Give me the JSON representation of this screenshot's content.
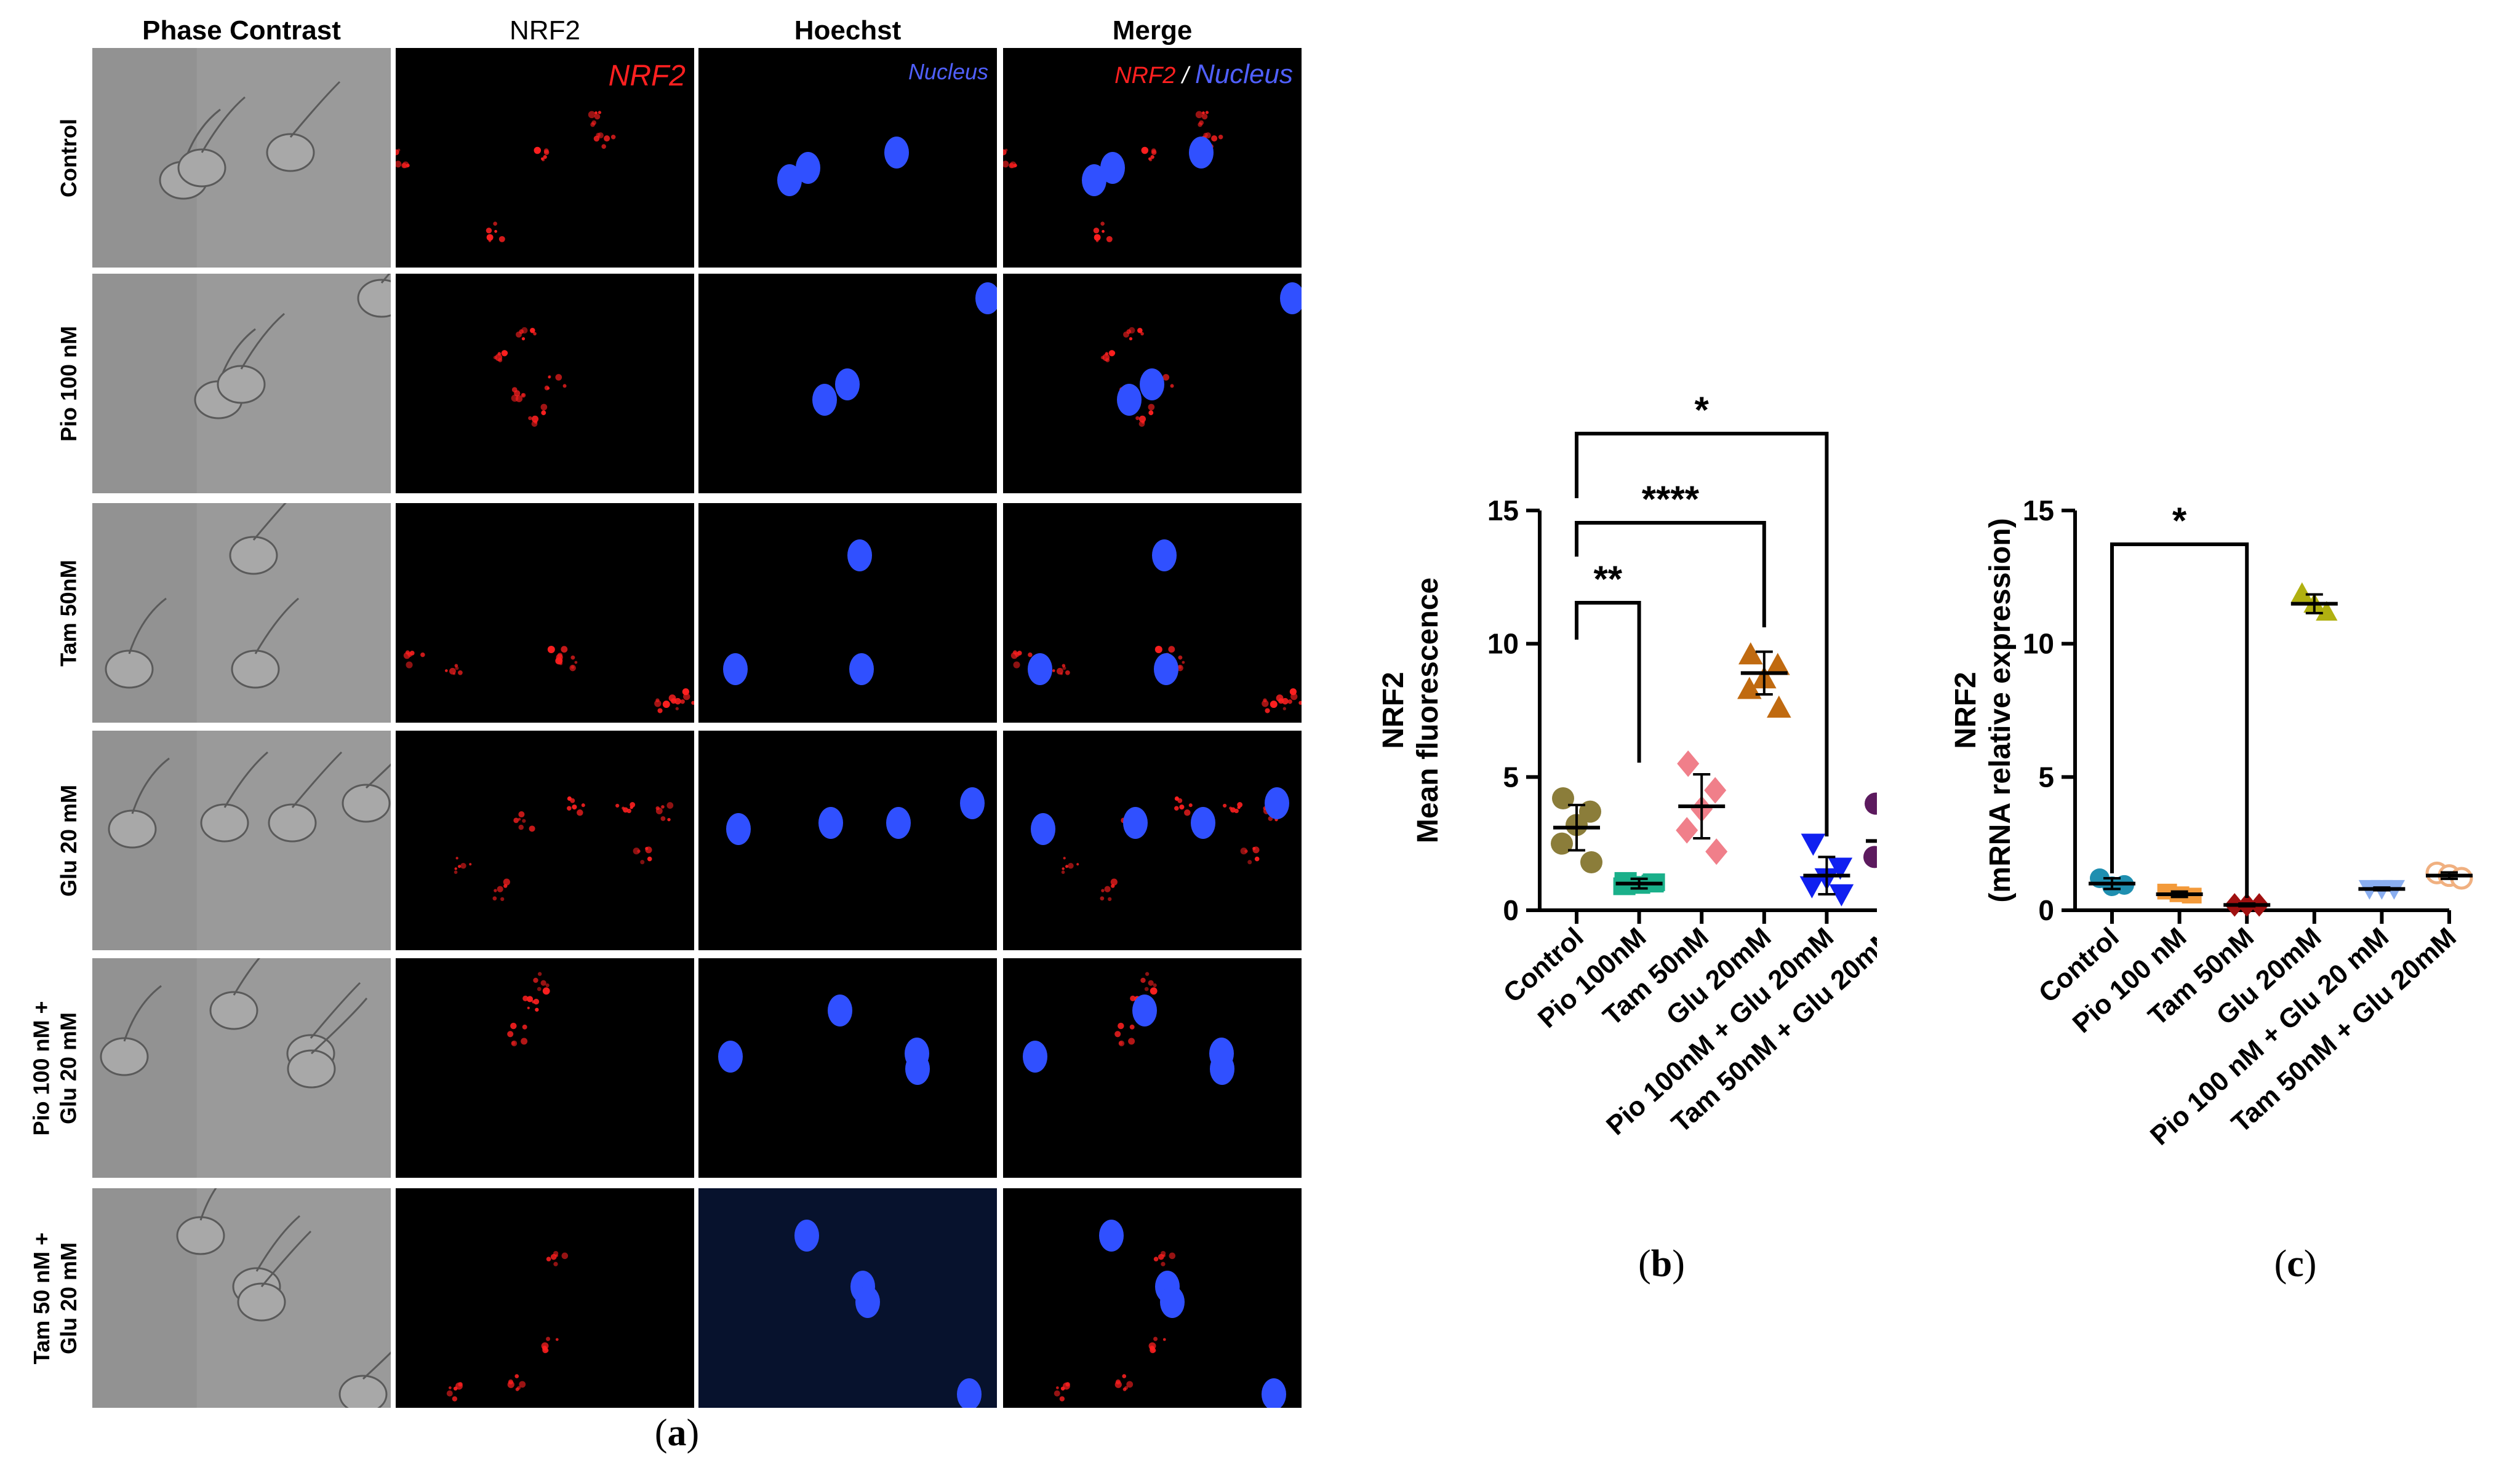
{
  "panel_a": {
    "column_headers": [
      "Phase Contrast",
      "NRF2",
      "Hoechst",
      "Merge"
    ],
    "row_labels": [
      [
        "Control"
      ],
      [
        "Pio 100 nM"
      ],
      [
        "Tam 50nM"
      ],
      [
        "Glu 20 mM"
      ],
      [
        "Pio 100 nM +",
        "Glu 20 mM"
      ],
      [
        "Tam 50 nM +",
        "Glu 20 mM"
      ]
    ],
    "nrf2_overlay": "NRF2",
    "hoechst_overlay": "Nucleus",
    "merge_overlay_a": "NRF2",
    "merge_overlay_sep": " / ",
    "merge_overlay_b": "Nucleus",
    "letter": "a",
    "colors": {
      "nrf2": "#ff2020",
      "nucleus": "#3050ff",
      "phase": "#9a9a9a"
    }
  },
  "panel_b": {
    "letter": "b"
  },
  "panel_c": {
    "letter": "c"
  },
  "chart_data": [
    {
      "type": "scatter",
      "panel": "b",
      "ylabel": "NRF2",
      "ylabel2": "Mean fluorescence",
      "xlabel": "",
      "ylim": [
        0,
        15
      ],
      "yticks": [
        0,
        5,
        10,
        15
      ],
      "categories": [
        "Control",
        "Pio 100nM",
        "Tam 50nM",
        "Glu 20mM",
        "Pio 100nM + Glu 20mM",
        "Tam 50nM + Glu 20mM"
      ],
      "colors": [
        "#8b7d3a",
        "#1ab08a",
        "#f07f8a",
        "#c06a10",
        "#1020f0",
        "#5c1a5e"
      ],
      "markers": [
        "circle",
        "square",
        "diamond",
        "triangle-up",
        "triangle-down",
        "circle"
      ],
      "means": [
        3.1,
        1.0,
        3.9,
        8.9,
        1.3,
        2.6
      ],
      "sds": [
        0.85,
        0.18,
        1.2,
        0.8,
        0.7,
        0.85
      ],
      "points": [
        [
          4.2,
          3.7,
          3.2,
          2.5,
          1.8
        ],
        [
          1.1,
          1.0,
          0.95,
          0.9,
          1.05
        ],
        [
          5.5,
          4.5,
          3.8,
          3.0,
          2.2
        ],
        [
          9.6,
          9.2,
          8.7,
          8.3,
          7.6
        ],
        [
          2.5,
          1.6,
          1.2,
          0.9,
          0.6
        ],
        [
          4.0,
          3.2,
          2.5,
          2.0,
          1.7
        ]
      ],
      "significance": [
        {
          "from": 0,
          "to": 1,
          "label": "**"
        },
        {
          "from": 0,
          "to": 3,
          "label": "****"
        },
        {
          "from": 0,
          "to": 4,
          "label": "*"
        }
      ]
    },
    {
      "type": "scatter",
      "panel": "c",
      "ylabel": "NRF2",
      "ylabel2": "(mRNA relative expression)",
      "xlabel": "",
      "ylim": [
        0,
        15
      ],
      "yticks": [
        0,
        5,
        10,
        15
      ],
      "categories": [
        "Control",
        "Pio 100 nM",
        "Tam 50nM",
        "Glu 20mM",
        "Pio 100 nM + Glu 20 mM",
        "Tam 50nM + Glu 20mM"
      ],
      "colors": [
        "#1f8fb0",
        "#f39a3a",
        "#a01010",
        "#b0b010",
        "#8aaef0",
        "#f0b080"
      ],
      "markers": [
        "circle",
        "square",
        "diamond",
        "triangle-up",
        "triangle-down",
        "circle-open"
      ],
      "means": [
        1.0,
        0.6,
        0.2,
        11.5,
        0.8,
        1.3
      ],
      "sds": [
        0.2,
        0.1,
        0.05,
        0.35,
        0.05,
        0.12
      ],
      "points": [
        [
          1.2,
          0.9,
          0.95
        ],
        [
          0.7,
          0.6,
          0.55
        ],
        [
          0.2,
          0.2,
          0.2
        ],
        [
          11.9,
          11.5,
          11.2
        ],
        [
          0.8,
          0.8,
          0.8
        ],
        [
          1.4,
          1.3,
          1.2
        ]
      ],
      "significance": [
        {
          "from": 0,
          "to": 2,
          "label": "*"
        }
      ]
    }
  ]
}
